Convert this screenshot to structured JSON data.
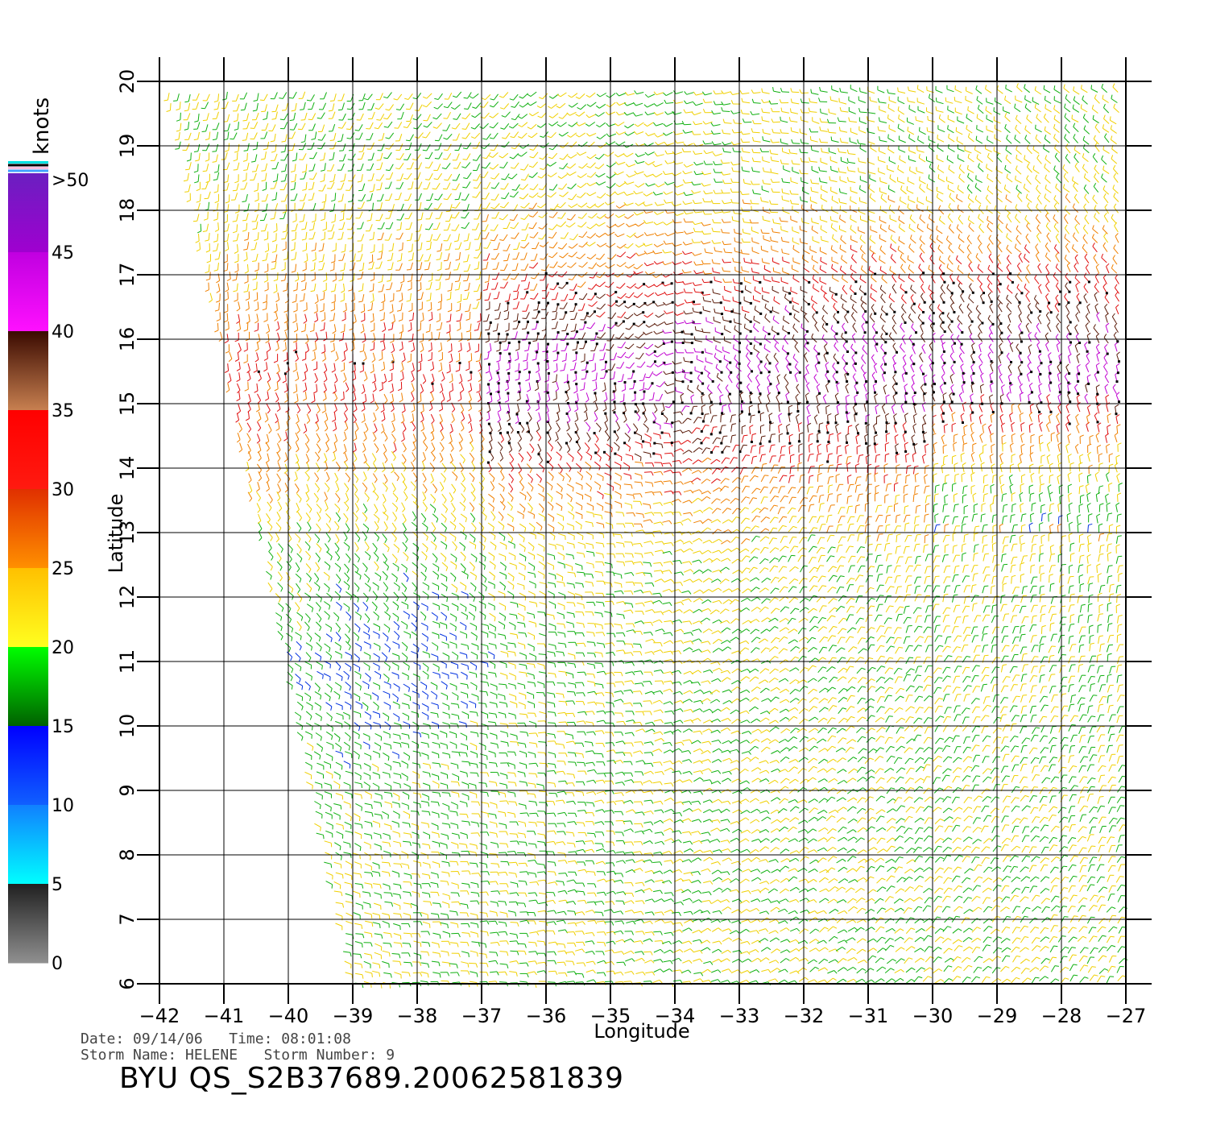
{
  "map": {
    "lon_range": [
      -42,
      -27
    ],
    "lat_range": [
      6,
      20
    ],
    "lon_ticks": [
      "−42",
      "−41",
      "−40",
      "−39",
      "−38",
      "−37",
      "−36",
      "−35",
      "−34",
      "−33",
      "−32",
      "−31",
      "−30",
      "−29",
      "−28",
      "−27"
    ],
    "lat_ticks": [
      "6",
      "7",
      "8",
      "9",
      "10",
      "11",
      "12",
      "13",
      "14",
      "15",
      "16",
      "17",
      "18",
      "19",
      "20"
    ],
    "xlabel": "Longitude",
    "ylabel": "Latitude",
    "grid": true,
    "center_of_storm": [
      -34,
      15
    ]
  },
  "legend": {
    "unit": "knots",
    "labels": [
      ">50",
      "45",
      "40",
      "35",
      "30",
      "25",
      "20",
      "15",
      "10",
      "5",
      "0"
    ],
    "bands": [
      {
        "from": 45,
        "to": 50,
        "top": "#6a1fc0",
        "bottom": "#a000d0"
      },
      {
        "from": 40,
        "to": 45,
        "top": "#c000e0",
        "bottom": "#ff10ff"
      },
      {
        "from": 35,
        "to": 40,
        "top": "#3a0a00",
        "bottom": "#c88050"
      },
      {
        "from": 30,
        "to": 35,
        "top": "#ff0000",
        "bottom": "#ff1a10"
      },
      {
        "from": 25,
        "to": 30,
        "top": "#e03000",
        "bottom": "#ff9000"
      },
      {
        "from": 20,
        "to": 25,
        "top": "#ffc000",
        "bottom": "#ffff20"
      },
      {
        "from": 15,
        "to": 20,
        "top": "#00ff00",
        "bottom": "#006000"
      },
      {
        "from": 10,
        "to": 15,
        "top": "#0000ff",
        "bottom": "#1060ff"
      },
      {
        "from": 5,
        "to": 10,
        "top": "#1080ff",
        "bottom": "#00ffff"
      },
      {
        "from": 0,
        "to": 5,
        "top": "#202020",
        "bottom": "#909090"
      }
    ]
  },
  "footer": {
    "line1": "Date: 09/14/06   Time: 08:01:08",
    "line2": "Storm Name: HELENE   Storm Number: 9",
    "product": "BYU  QS_S2B37689.20062581839"
  }
}
